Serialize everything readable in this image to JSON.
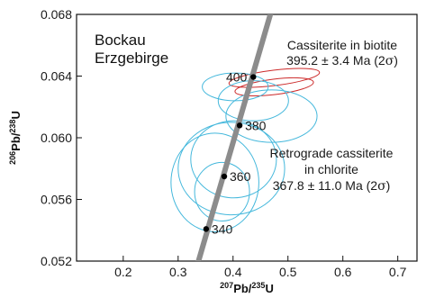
{
  "chart_data": {
    "type": "concordia",
    "xlabel_sup": "207",
    "xlabel_main": "Pb/",
    "xlabel_sup2": "235",
    "xlabel_end": "U",
    "ylabel_sup": "206",
    "ylabel_main": "Pb/",
    "ylabel_sup2": "238",
    "ylabel_end": "U",
    "xlim": [
      0.115,
      0.735
    ],
    "ylim": [
      0.052,
      0.068
    ],
    "xticks": [
      0.2,
      0.3,
      0.4,
      0.5,
      0.6,
      0.7
    ],
    "xtick_labels": [
      "0.2",
      "0.3",
      "0.4",
      "0.5",
      "0.6",
      "0.7"
    ],
    "yticks": [
      0.052,
      0.056,
      0.06,
      0.064,
      0.068
    ],
    "ytick_labels": [
      "0.052",
      "0.056",
      "0.060",
      "0.064",
      "0.068"
    ],
    "location_line1": "Bockau",
    "location_line2": "Erzgebirge",
    "concordia_color": "#8c8c8c",
    "concordia_points": [
      {
        "age": 340,
        "label": "340",
        "x": 0.351,
        "y": 0.05408
      },
      {
        "age": 360,
        "label": "360",
        "x": 0.384,
        "y": 0.05749
      },
      {
        "age": 380,
        "label": "380",
        "x": 0.412,
        "y": 0.0608
      },
      {
        "age": 400,
        "label": "400",
        "x": 0.437,
        "y": 0.06394
      }
    ],
    "concordia_line": {
      "x0": 0.333,
      "y0": 0.0515,
      "x1": 0.472,
      "y1": 0.0685
    },
    "series": [
      {
        "name": "Cassiterite in biotite",
        "color": "#cc2a2a",
        "ellipses": [
          {
            "cx": 0.475,
            "cy": 0.06388,
            "rx": 0.083,
            "ry": 0.0005,
            "angle": -7
          },
          {
            "cx": 0.475,
            "cy": 0.0633,
            "rx": 0.072,
            "ry": 0.0005,
            "angle": -7
          }
        ]
      },
      {
        "name": "Retrograde cassiterite in chlorite",
        "color": "#45b8dc",
        "ellipses": [
          {
            "cx": 0.404,
            "cy": 0.0633,
            "rx": 0.06,
            "ry": 0.0009,
            "angle": 0
          },
          {
            "cx": 0.437,
            "cy": 0.0624,
            "rx": 0.064,
            "ry": 0.0013,
            "angle": 0
          },
          {
            "cx": 0.47,
            "cy": 0.0614,
            "rx": 0.083,
            "ry": 0.0017,
            "angle": 0
          },
          {
            "cx": 0.401,
            "cy": 0.0586,
            "rx": 0.078,
            "ry": 0.0025,
            "angle": 0
          },
          {
            "cx": 0.397,
            "cy": 0.058,
            "rx": 0.097,
            "ry": 0.003,
            "angle": 0
          },
          {
            "cx": 0.367,
            "cy": 0.0571,
            "rx": 0.08,
            "ry": 0.0032,
            "angle": 0
          },
          {
            "cx": 0.38,
            "cy": 0.0565,
            "rx": 0.05,
            "ry": 0.0019,
            "angle": 0
          }
        ]
      }
    ],
    "annotations": {
      "biotite_title": "Cassiterite in biotite",
      "biotite_age": "395.2 ± 3.4 Ma (2",
      "chlorite_title1": "Retrograde cassiterite",
      "chlorite_title2": "in chlorite",
      "chlorite_age": "367.8 ± 11.0 Ma (2",
      "sigma": "σ",
      "close_paren": ")"
    }
  }
}
